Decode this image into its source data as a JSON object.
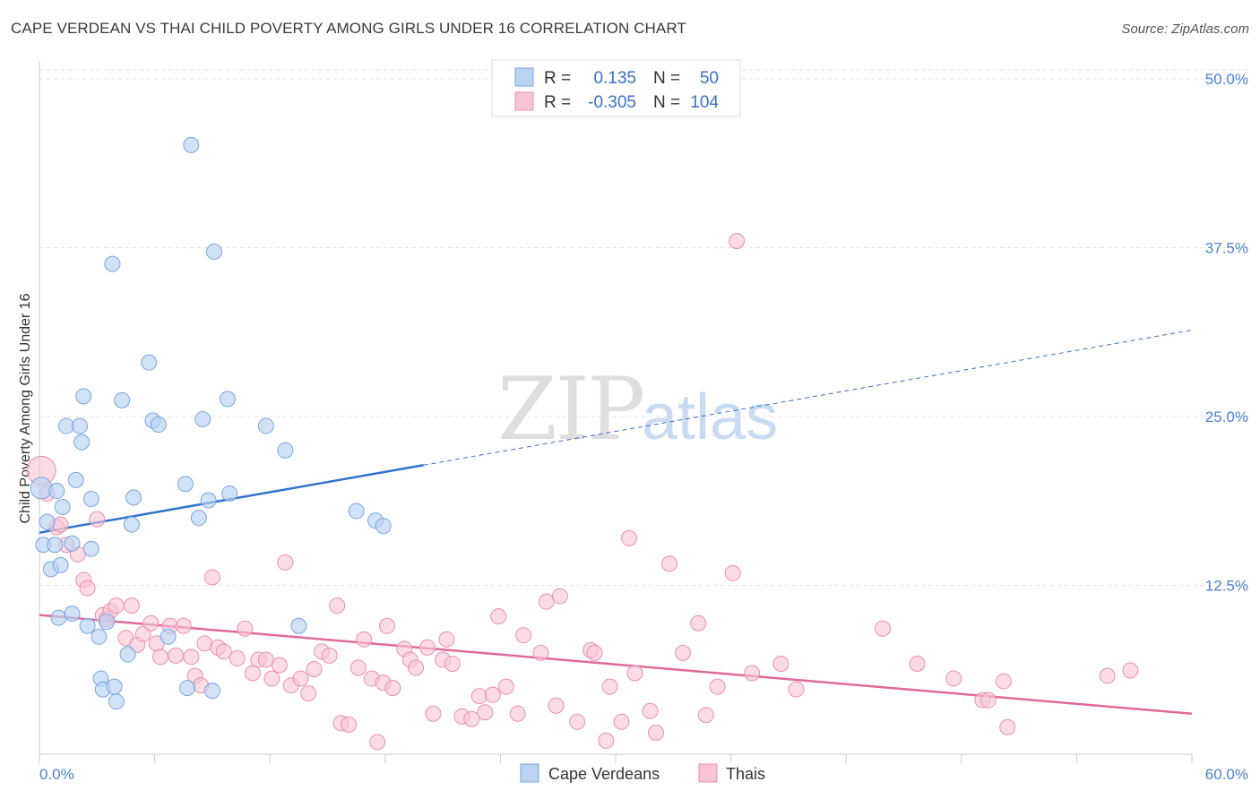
{
  "title": "CAPE VERDEAN VS THAI CHILD POVERTY AMONG GIRLS UNDER 16 CORRELATION CHART",
  "source": "Source: ZipAtlas.com",
  "watermark": {
    "zip": "ZIP",
    "atlas": "atlas"
  },
  "legend": {
    "rows": [
      {
        "r_label": "R =",
        "r_value": "0.135",
        "n_label": "N =",
        "n_value": "50",
        "color": "#b9d3f3"
      },
      {
        "r_label": "R =",
        "r_value": "-0.305",
        "n_label": "N =",
        "n_value": "104",
        "color": "#f8c4d4"
      }
    ]
  },
  "bottom_legend": [
    {
      "label": "Cape Verdeans",
      "color": "#b9d3f3"
    },
    {
      "label": "Thais",
      "color": "#f8c4d4"
    }
  ],
  "colors": {
    "cape_fill": "#b9d3f3",
    "cape_stroke": "#7aa6df",
    "cape_line": "#2f72cc",
    "thai_fill": "#f8c4d4",
    "thai_stroke": "#ea90ad",
    "thai_line": "#e0699a",
    "grid": "#e3e3e3",
    "tick_label": "#4a7fd0"
  },
  "chart_data": {
    "type": "scatter",
    "title": "CAPE VERDEAN VS THAI CHILD POVERTY AMONG GIRLS UNDER 16 CORRELATION CHART",
    "xlabel": "",
    "ylabel": "Child Poverty Among Girls Under 16",
    "xlim": [
      0,
      60
    ],
    "ylim": [
      0,
      50
    ],
    "x_tick_labels": [
      "0.0%",
      "60.0%"
    ],
    "y_ticks": [
      12.5,
      25.0,
      37.5,
      50.0
    ],
    "y_tick_labels": [
      "12.5%",
      "25.0%",
      "37.5%",
      "50.0%"
    ],
    "grid": "horizontal dashed",
    "series": [
      {
        "name": "Cape Verdeans",
        "r": 0.135,
        "n": 50,
        "trend": {
          "x0": 0,
          "y0": 16.4,
          "x1": 20,
          "y1": 21.4,
          "dash_to_x": 60,
          "dash_to_y": 31.4
        },
        "points": [
          [
            0.1,
            19.7
          ],
          [
            0.2,
            15.5
          ],
          [
            0.4,
            17.2
          ],
          [
            0.6,
            13.7
          ],
          [
            0.8,
            15.5
          ],
          [
            0.9,
            19.5
          ],
          [
            1.0,
            10.1
          ],
          [
            1.1,
            14.0
          ],
          [
            1.2,
            18.3
          ],
          [
            1.4,
            24.3
          ],
          [
            1.7,
            15.6
          ],
          [
            1.7,
            10.4
          ],
          [
            1.9,
            20.3
          ],
          [
            2.1,
            24.3
          ],
          [
            2.2,
            23.1
          ],
          [
            2.3,
            26.5
          ],
          [
            2.5,
            9.5
          ],
          [
            2.7,
            18.9
          ],
          [
            2.7,
            15.2
          ],
          [
            3.1,
            8.7
          ],
          [
            3.2,
            5.6
          ],
          [
            3.3,
            4.8
          ],
          [
            3.5,
            9.8
          ],
          [
            3.8,
            36.3
          ],
          [
            3.9,
            5.0
          ],
          [
            4.0,
            3.9
          ],
          [
            4.3,
            26.2
          ],
          [
            4.6,
            7.4
          ],
          [
            4.8,
            17.0
          ],
          [
            4.9,
            19.0
          ],
          [
            5.7,
            29.0
          ],
          [
            5.9,
            24.7
          ],
          [
            6.2,
            24.4
          ],
          [
            6.7,
            8.7
          ],
          [
            7.6,
            20.0
          ],
          [
            7.7,
            4.9
          ],
          [
            7.9,
            45.1
          ],
          [
            8.3,
            17.5
          ],
          [
            8.5,
            24.8
          ],
          [
            8.8,
            18.8
          ],
          [
            9.1,
            37.2
          ],
          [
            9.0,
            4.7
          ],
          [
            9.8,
            26.3
          ],
          [
            9.9,
            19.3
          ],
          [
            11.8,
            24.3
          ],
          [
            12.8,
            22.5
          ],
          [
            13.5,
            9.5
          ],
          [
            16.5,
            18.0
          ],
          [
            17.5,
            17.3
          ],
          [
            17.9,
            16.9
          ]
        ]
      },
      {
        "name": "Thais",
        "r": -0.305,
        "n": 104,
        "trend": {
          "x0": 0,
          "y0": 10.3,
          "x1": 60,
          "y1": 3.0
        },
        "points": [
          [
            0.1,
            21.0
          ],
          [
            0.4,
            19.3
          ],
          [
            0.9,
            16.8
          ],
          [
            1.1,
            17.0
          ],
          [
            1.4,
            15.5
          ],
          [
            2.0,
            14.8
          ],
          [
            2.3,
            12.9
          ],
          [
            2.5,
            12.3
          ],
          [
            3.0,
            17.4
          ],
          [
            3.3,
            10.3
          ],
          [
            3.5,
            10.0
          ],
          [
            3.7,
            10.6
          ],
          [
            4.0,
            11.0
          ],
          [
            4.5,
            8.6
          ],
          [
            4.8,
            11.0
          ],
          [
            5.1,
            8.1
          ],
          [
            5.4,
            8.9
          ],
          [
            5.8,
            9.7
          ],
          [
            6.1,
            8.2
          ],
          [
            6.3,
            7.2
          ],
          [
            6.8,
            9.5
          ],
          [
            7.1,
            7.3
          ],
          [
            7.5,
            9.5
          ],
          [
            7.9,
            7.2
          ],
          [
            8.1,
            5.8
          ],
          [
            8.4,
            5.1
          ],
          [
            8.6,
            8.2
          ],
          [
            9.0,
            13.1
          ],
          [
            9.3,
            7.9
          ],
          [
            9.6,
            7.6
          ],
          [
            10.3,
            7.1
          ],
          [
            10.7,
            9.3
          ],
          [
            11.1,
            6.0
          ],
          [
            11.4,
            7.0
          ],
          [
            11.8,
            7.0
          ],
          [
            12.1,
            5.6
          ],
          [
            12.5,
            6.6
          ],
          [
            12.8,
            14.2
          ],
          [
            13.1,
            5.1
          ],
          [
            13.6,
            5.6
          ],
          [
            14.0,
            4.5
          ],
          [
            14.3,
            6.3
          ],
          [
            14.7,
            7.6
          ],
          [
            15.1,
            7.3
          ],
          [
            15.5,
            11.0
          ],
          [
            15.7,
            2.3
          ],
          [
            16.1,
            2.2
          ],
          [
            16.6,
            6.4
          ],
          [
            16.9,
            8.5
          ],
          [
            17.3,
            5.6
          ],
          [
            17.6,
            0.9
          ],
          [
            17.9,
            5.3
          ],
          [
            18.1,
            9.5
          ],
          [
            18.4,
            4.9
          ],
          [
            19.0,
            7.8
          ],
          [
            19.3,
            7.0
          ],
          [
            19.6,
            6.4
          ],
          [
            20.2,
            7.9
          ],
          [
            20.5,
            3.0
          ],
          [
            21.0,
            7.0
          ],
          [
            21.2,
            8.5
          ],
          [
            21.5,
            6.7
          ],
          [
            22.0,
            2.8
          ],
          [
            22.5,
            2.6
          ],
          [
            22.9,
            4.3
          ],
          [
            23.2,
            3.1
          ],
          [
            23.6,
            4.4
          ],
          [
            23.9,
            10.2
          ],
          [
            24.3,
            5.0
          ],
          [
            24.9,
            3.0
          ],
          [
            25.2,
            8.8
          ],
          [
            26.1,
            7.5
          ],
          [
            26.4,
            11.3
          ],
          [
            26.9,
            3.6
          ],
          [
            27.1,
            11.7
          ],
          [
            28.0,
            2.4
          ],
          [
            28.7,
            7.7
          ],
          [
            28.9,
            7.5
          ],
          [
            29.5,
            1.0
          ],
          [
            29.7,
            5.0
          ],
          [
            30.3,
            2.4
          ],
          [
            30.7,
            16.0
          ],
          [
            31.0,
            6.0
          ],
          [
            31.8,
            3.2
          ],
          [
            32.1,
            1.6
          ],
          [
            32.8,
            14.1
          ],
          [
            33.5,
            7.5
          ],
          [
            34.3,
            9.7
          ],
          [
            34.7,
            2.9
          ],
          [
            35.3,
            5.0
          ],
          [
            36.1,
            13.4
          ],
          [
            36.3,
            38.0
          ],
          [
            37.1,
            6.0
          ],
          [
            38.6,
            6.7
          ],
          [
            39.4,
            4.8
          ],
          [
            43.9,
            9.3
          ],
          [
            45.7,
            6.7
          ],
          [
            47.6,
            5.6
          ],
          [
            49.1,
            4.0
          ],
          [
            50.2,
            5.4
          ],
          [
            49.4,
            4.0
          ],
          [
            50.4,
            2.0
          ],
          [
            55.6,
            5.8
          ],
          [
            56.8,
            6.2
          ]
        ]
      }
    ]
  }
}
